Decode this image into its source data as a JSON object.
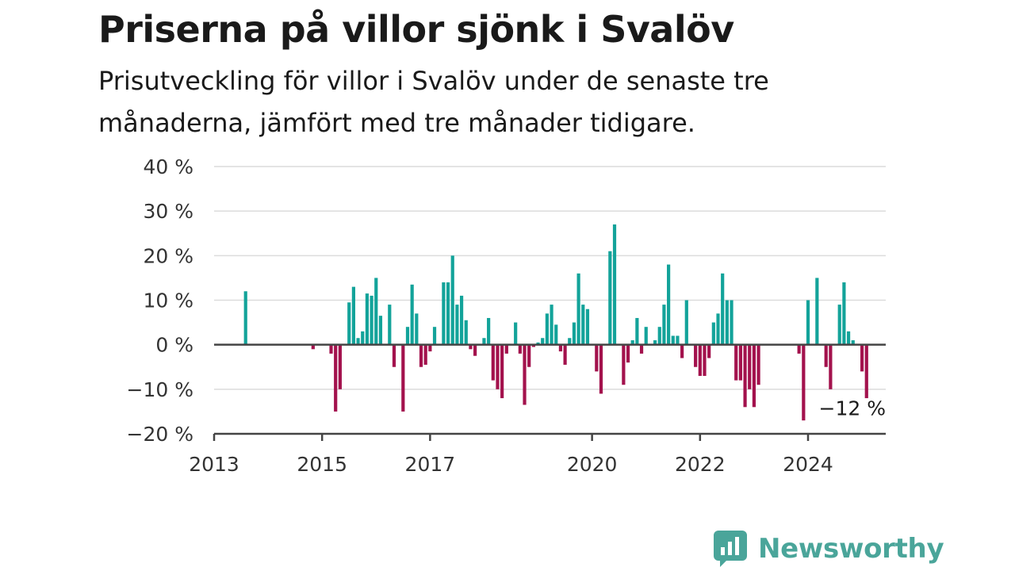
{
  "title": "Priserna på villor sjönk i Svalöv",
  "subtitle": "Prisutveckling för villor i Svalöv under de senaste tre månaderna, jämfört med tre månader tidigare.",
  "brand": {
    "name": "Newsworthy",
    "icon": "newsworthy-chart-bubble-icon"
  },
  "colors": {
    "positive": "#13a39a",
    "negative": "#a3124d",
    "grid": "#dcdcdc",
    "axis": "#444444"
  },
  "chart_data": {
    "type": "bar",
    "unit": "%",
    "ylim": [
      -20,
      40
    ],
    "yticks": [
      -20,
      -10,
      0,
      10,
      20,
      30,
      40
    ],
    "ytick_labels": [
      "−20 %",
      "−10 %",
      "0 %",
      "10 %",
      "20 %",
      "30 %",
      "40 %"
    ],
    "xlim": [
      "2013-01",
      "2025-06"
    ],
    "xticks": [
      "2013-01",
      "2015-01",
      "2017-01",
      "2020-01",
      "2022-01",
      "2024-01"
    ],
    "xtick_labels": [
      "2013",
      "2015",
      "2017",
      "2020",
      "2022",
      "2024"
    ],
    "grid": true,
    "annotation": {
      "label": "−12 %",
      "target": "2024-12"
    },
    "points": [
      [
        "2013-08",
        12
      ],
      [
        "2014-11",
        -1
      ],
      [
        "2015-03",
        -2
      ],
      [
        "2015-04",
        -15
      ],
      [
        "2015-05",
        -10
      ],
      [
        "2015-07",
        9.5
      ],
      [
        "2015-08",
        13
      ],
      [
        "2015-09",
        1.5
      ],
      [
        "2015-10",
        3
      ],
      [
        "2015-11",
        11.5
      ],
      [
        "2015-12",
        11
      ],
      [
        "2016-01",
        15
      ],
      [
        "2016-02",
        6.5
      ],
      [
        "2016-04",
        9
      ],
      [
        "2016-05",
        -5
      ],
      [
        "2016-07",
        -15
      ],
      [
        "2016-08",
        4
      ],
      [
        "2016-09",
        13.5
      ],
      [
        "2016-10",
        7
      ],
      [
        "2016-11",
        -5
      ],
      [
        "2016-12",
        -4.5
      ],
      [
        "2017-01",
        -1.5
      ],
      [
        "2017-02",
        4
      ],
      [
        "2017-04",
        14
      ],
      [
        "2017-05",
        14
      ],
      [
        "2017-06",
        20
      ],
      [
        "2017-07",
        9
      ],
      [
        "2017-08",
        11
      ],
      [
        "2017-09",
        5.5
      ],
      [
        "2017-10",
        -1
      ],
      [
        "2017-11",
        -2.5
      ],
      [
        "2018-01",
        1.5
      ],
      [
        "2018-02",
        6
      ],
      [
        "2018-03",
        -8
      ],
      [
        "2018-04",
        -10
      ],
      [
        "2018-05",
        -12
      ],
      [
        "2018-06",
        -2
      ],
      [
        "2018-08",
        5
      ],
      [
        "2018-09",
        -2
      ],
      [
        "2018-10",
        -13.5
      ],
      [
        "2018-11",
        -5
      ],
      [
        "2018-12",
        -0.5
      ],
      [
        "2019-01",
        0.5
      ],
      [
        "2019-02",
        1.5
      ],
      [
        "2019-03",
        7
      ],
      [
        "2019-04",
        9
      ],
      [
        "2019-05",
        4.5
      ],
      [
        "2019-06",
        -1.5
      ],
      [
        "2019-07",
        -4.5
      ],
      [
        "2019-08",
        1.5
      ],
      [
        "2019-09",
        5
      ],
      [
        "2019-10",
        16
      ],
      [
        "2019-11",
        9
      ],
      [
        "2019-12",
        8
      ],
      [
        "2020-02",
        -6
      ],
      [
        "2020-03",
        -11
      ],
      [
        "2020-05",
        21
      ],
      [
        "2020-06",
        27
      ],
      [
        "2020-08",
        -9
      ],
      [
        "2020-09",
        -4
      ],
      [
        "2020-10",
        1
      ],
      [
        "2020-11",
        6
      ],
      [
        "2020-12",
        -2
      ],
      [
        "2021-01",
        4
      ],
      [
        "2021-03",
        1
      ],
      [
        "2021-04",
        4
      ],
      [
        "2021-05",
        9
      ],
      [
        "2021-06",
        18
      ],
      [
        "2021-07",
        2
      ],
      [
        "2021-08",
        2
      ],
      [
        "2021-09",
        -3
      ],
      [
        "2021-10",
        10
      ],
      [
        "2021-12",
        -5
      ],
      [
        "2022-01",
        -7
      ],
      [
        "2022-02",
        -7
      ],
      [
        "2022-03",
        -3
      ],
      [
        "2022-04",
        5
      ],
      [
        "2022-05",
        7
      ],
      [
        "2022-06",
        16
      ],
      [
        "2022-07",
        10
      ],
      [
        "2022-08",
        10
      ],
      [
        "2022-09",
        -8
      ],
      [
        "2022-10",
        -8
      ],
      [
        "2022-11",
        -14
      ],
      [
        "2022-12",
        -10
      ],
      [
        "2023-01",
        -14
      ],
      [
        "2023-02",
        -9
      ],
      [
        "2023-11",
        -2
      ],
      [
        "2023-12",
        -17
      ],
      [
        "2024-01",
        10
      ],
      [
        "2024-03",
        15
      ],
      [
        "2024-05",
        -5
      ],
      [
        "2024-06",
        -10
      ],
      [
        "2024-08",
        9
      ],
      [
        "2024-09",
        14
      ],
      [
        "2024-10",
        3
      ],
      [
        "2024-11",
        1
      ],
      [
        "2025-01",
        -6
      ],
      [
        "2025-02",
        -12
      ]
    ]
  }
}
